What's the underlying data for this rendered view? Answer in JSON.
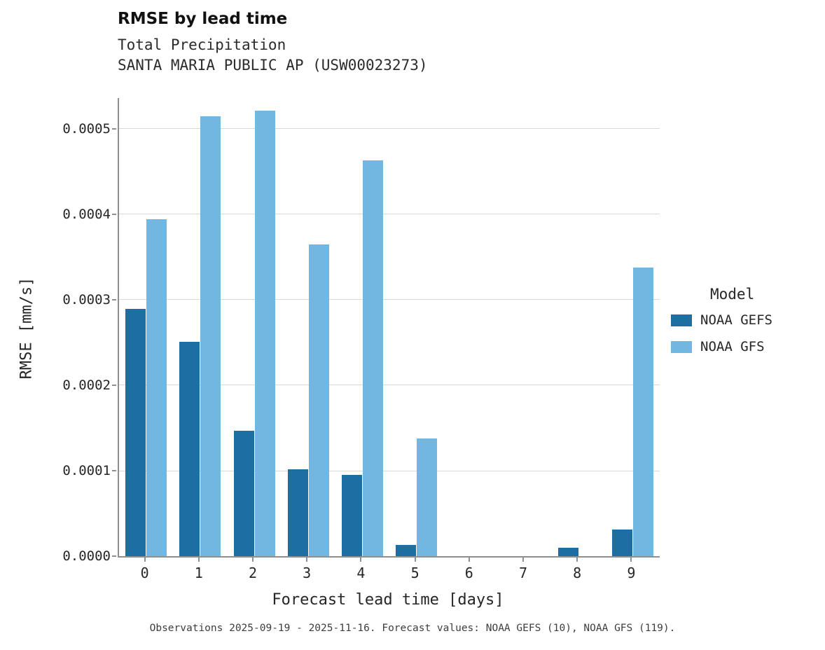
{
  "header": {
    "title": "RMSE by lead time",
    "subtitle1": "Total Precipitation",
    "subtitle2": "SANTA MARIA PUBLIC AP (USW00023273)"
  },
  "caption": "Observations 2025-09-19 - 2025-11-16. Forecast values: NOAA GEFS (10), NOAA GFS (119).",
  "legend": {
    "title": "Model",
    "entries": [
      {
        "label": "NOAA GEFS",
        "color": "#1d6ea3"
      },
      {
        "label": "NOAA GFS",
        "color": "#72b7e2"
      }
    ]
  },
  "chart_data": {
    "type": "bar",
    "title": "RMSE by lead time",
    "subtitle": "Total Precipitation — SANTA MARIA PUBLIC AP (USW00023273)",
    "xlabel": "Forecast lead time [days]",
    "ylabel": "RMSE [mm/s]",
    "categories": [
      "0",
      "1",
      "2",
      "3",
      "4",
      "5",
      "6",
      "7",
      "8",
      "9"
    ],
    "series": [
      {
        "name": "NOAA GEFS",
        "color": "#1d6ea3",
        "values": [
          0.000289,
          0.000251,
          0.000147,
          0.000102,
          9.5e-05,
          1.3e-05,
          0,
          0,
          1e-05,
          3.1e-05
        ]
      },
      {
        "name": "NOAA GFS",
        "color": "#72b7e2",
        "values": [
          0.000394,
          0.000515,
          0.000521,
          0.000365,
          0.000463,
          0.000138,
          0,
          0,
          0,
          0.000338
        ]
      }
    ],
    "ylim": [
      0,
      0.000536
    ],
    "yticks": [
      0.0,
      0.0001,
      0.0002,
      0.0003,
      0.0004,
      0.0005
    ],
    "ytick_format_decimals": 4,
    "grid": "horizontal",
    "legend_position": "right"
  }
}
